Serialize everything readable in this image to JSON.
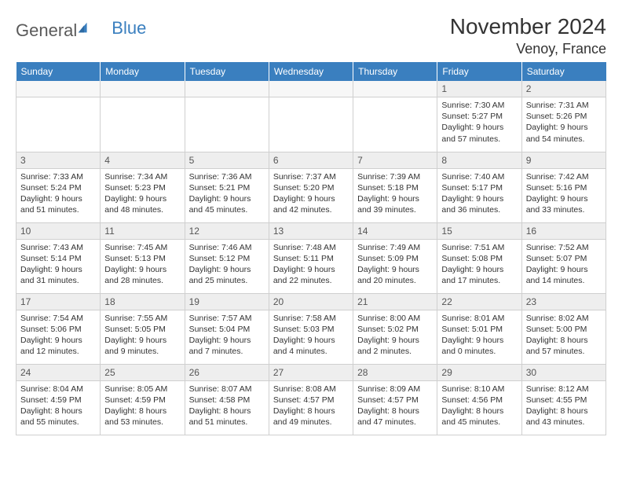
{
  "logo": {
    "text1": "General",
    "text2": "Blue"
  },
  "title": "November 2024",
  "location": "Venoy, France",
  "days": [
    "Sunday",
    "Monday",
    "Tuesday",
    "Wednesday",
    "Thursday",
    "Friday",
    "Saturday"
  ],
  "colors": {
    "header_bg": "#3a7fbf",
    "header_text": "#ffffff",
    "daynum_bg": "#eeeeee",
    "border": "#cfcfcf",
    "text": "#333333",
    "logo_gray": "#5a5a5a",
    "logo_blue": "#3a7fbf"
  },
  "weeks": [
    [
      {
        "n": "",
        "sr": "",
        "ss": "",
        "dl": ""
      },
      {
        "n": "",
        "sr": "",
        "ss": "",
        "dl": ""
      },
      {
        "n": "",
        "sr": "",
        "ss": "",
        "dl": ""
      },
      {
        "n": "",
        "sr": "",
        "ss": "",
        "dl": ""
      },
      {
        "n": "",
        "sr": "",
        "ss": "",
        "dl": ""
      },
      {
        "n": "1",
        "sr": "Sunrise: 7:30 AM",
        "ss": "Sunset: 5:27 PM",
        "dl": "Daylight: 9 hours and 57 minutes."
      },
      {
        "n": "2",
        "sr": "Sunrise: 7:31 AM",
        "ss": "Sunset: 5:26 PM",
        "dl": "Daylight: 9 hours and 54 minutes."
      }
    ],
    [
      {
        "n": "3",
        "sr": "Sunrise: 7:33 AM",
        "ss": "Sunset: 5:24 PM",
        "dl": "Daylight: 9 hours and 51 minutes."
      },
      {
        "n": "4",
        "sr": "Sunrise: 7:34 AM",
        "ss": "Sunset: 5:23 PM",
        "dl": "Daylight: 9 hours and 48 minutes."
      },
      {
        "n": "5",
        "sr": "Sunrise: 7:36 AM",
        "ss": "Sunset: 5:21 PM",
        "dl": "Daylight: 9 hours and 45 minutes."
      },
      {
        "n": "6",
        "sr": "Sunrise: 7:37 AM",
        "ss": "Sunset: 5:20 PM",
        "dl": "Daylight: 9 hours and 42 minutes."
      },
      {
        "n": "7",
        "sr": "Sunrise: 7:39 AM",
        "ss": "Sunset: 5:18 PM",
        "dl": "Daylight: 9 hours and 39 minutes."
      },
      {
        "n": "8",
        "sr": "Sunrise: 7:40 AM",
        "ss": "Sunset: 5:17 PM",
        "dl": "Daylight: 9 hours and 36 minutes."
      },
      {
        "n": "9",
        "sr": "Sunrise: 7:42 AM",
        "ss": "Sunset: 5:16 PM",
        "dl": "Daylight: 9 hours and 33 minutes."
      }
    ],
    [
      {
        "n": "10",
        "sr": "Sunrise: 7:43 AM",
        "ss": "Sunset: 5:14 PM",
        "dl": "Daylight: 9 hours and 31 minutes."
      },
      {
        "n": "11",
        "sr": "Sunrise: 7:45 AM",
        "ss": "Sunset: 5:13 PM",
        "dl": "Daylight: 9 hours and 28 minutes."
      },
      {
        "n": "12",
        "sr": "Sunrise: 7:46 AM",
        "ss": "Sunset: 5:12 PM",
        "dl": "Daylight: 9 hours and 25 minutes."
      },
      {
        "n": "13",
        "sr": "Sunrise: 7:48 AM",
        "ss": "Sunset: 5:11 PM",
        "dl": "Daylight: 9 hours and 22 minutes."
      },
      {
        "n": "14",
        "sr": "Sunrise: 7:49 AM",
        "ss": "Sunset: 5:09 PM",
        "dl": "Daylight: 9 hours and 20 minutes."
      },
      {
        "n": "15",
        "sr": "Sunrise: 7:51 AM",
        "ss": "Sunset: 5:08 PM",
        "dl": "Daylight: 9 hours and 17 minutes."
      },
      {
        "n": "16",
        "sr": "Sunrise: 7:52 AM",
        "ss": "Sunset: 5:07 PM",
        "dl": "Daylight: 9 hours and 14 minutes."
      }
    ],
    [
      {
        "n": "17",
        "sr": "Sunrise: 7:54 AM",
        "ss": "Sunset: 5:06 PM",
        "dl": "Daylight: 9 hours and 12 minutes."
      },
      {
        "n": "18",
        "sr": "Sunrise: 7:55 AM",
        "ss": "Sunset: 5:05 PM",
        "dl": "Daylight: 9 hours and 9 minutes."
      },
      {
        "n": "19",
        "sr": "Sunrise: 7:57 AM",
        "ss": "Sunset: 5:04 PM",
        "dl": "Daylight: 9 hours and 7 minutes."
      },
      {
        "n": "20",
        "sr": "Sunrise: 7:58 AM",
        "ss": "Sunset: 5:03 PM",
        "dl": "Daylight: 9 hours and 4 minutes."
      },
      {
        "n": "21",
        "sr": "Sunrise: 8:00 AM",
        "ss": "Sunset: 5:02 PM",
        "dl": "Daylight: 9 hours and 2 minutes."
      },
      {
        "n": "22",
        "sr": "Sunrise: 8:01 AM",
        "ss": "Sunset: 5:01 PM",
        "dl": "Daylight: 9 hours and 0 minutes."
      },
      {
        "n": "23",
        "sr": "Sunrise: 8:02 AM",
        "ss": "Sunset: 5:00 PM",
        "dl": "Daylight: 8 hours and 57 minutes."
      }
    ],
    [
      {
        "n": "24",
        "sr": "Sunrise: 8:04 AM",
        "ss": "Sunset: 4:59 PM",
        "dl": "Daylight: 8 hours and 55 minutes."
      },
      {
        "n": "25",
        "sr": "Sunrise: 8:05 AM",
        "ss": "Sunset: 4:59 PM",
        "dl": "Daylight: 8 hours and 53 minutes."
      },
      {
        "n": "26",
        "sr": "Sunrise: 8:07 AM",
        "ss": "Sunset: 4:58 PM",
        "dl": "Daylight: 8 hours and 51 minutes."
      },
      {
        "n": "27",
        "sr": "Sunrise: 8:08 AM",
        "ss": "Sunset: 4:57 PM",
        "dl": "Daylight: 8 hours and 49 minutes."
      },
      {
        "n": "28",
        "sr": "Sunrise: 8:09 AM",
        "ss": "Sunset: 4:57 PM",
        "dl": "Daylight: 8 hours and 47 minutes."
      },
      {
        "n": "29",
        "sr": "Sunrise: 8:10 AM",
        "ss": "Sunset: 4:56 PM",
        "dl": "Daylight: 8 hours and 45 minutes."
      },
      {
        "n": "30",
        "sr": "Sunrise: 8:12 AM",
        "ss": "Sunset: 4:55 PM",
        "dl": "Daylight: 8 hours and 43 minutes."
      }
    ]
  ]
}
